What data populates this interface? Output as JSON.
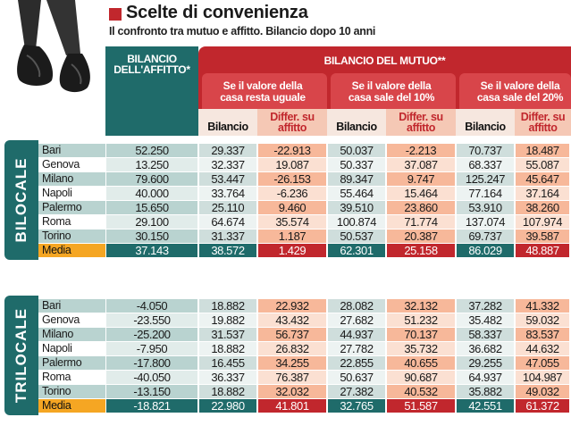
{
  "title": "Scelte di convenienza",
  "subtitle": "Il confronto tra mutuo e affitto. Bilancio dopo 10 anni",
  "header": {
    "affitto": [
      "BILANCIO",
      "DELL'AFFITTO*"
    ],
    "mutuo": "BILANCIO DEL MUTUO**",
    "scenarios": [
      [
        "Se il valore della",
        "casa resta uguale"
      ],
      [
        "Se il valore della",
        "casa sale del 10%"
      ],
      [
        "Se il valore della",
        "casa sale del 20%"
      ]
    ],
    "bilancio": "Bilancio",
    "differ": [
      "Differ. su",
      "affitto"
    ]
  },
  "colors": {
    "teal": "#1f6b6a",
    "red": "#c1272d",
    "peach": "#f5c8b5",
    "lightTeal": "#cfe0df",
    "orange": "#f5a623"
  },
  "sections": [
    {
      "label": "BILOCALE",
      "rows": [
        {
          "city": "Bari",
          "values": [
            "52.250",
            "29.337",
            "-22.913",
            "50.037",
            "-2.213",
            "70.737",
            "18.487"
          ]
        },
        {
          "city": "Genova",
          "values": [
            "13.250",
            "32.337",
            "19.087",
            "50.337",
            "37.087",
            "68.337",
            "55.087"
          ]
        },
        {
          "city": "Milano",
          "values": [
            "79.600",
            "53.447",
            "-26.153",
            "89.347",
            "9.747",
            "125.247",
            "45.647"
          ]
        },
        {
          "city": "Napoli",
          "values": [
            "40.000",
            "33.764",
            "-6.236",
            "55.464",
            "15.464",
            "77.164",
            "37.164"
          ]
        },
        {
          "city": "Palermo",
          "values": [
            "15.650",
            "25.110",
            "9.460",
            "39.510",
            "23.860",
            "53.910",
            "38.260"
          ]
        },
        {
          "city": "Roma",
          "values": [
            "29.100",
            "64.674",
            "35.574",
            "100.874",
            "71.774",
            "137.074",
            "107.974"
          ]
        },
        {
          "city": "Torino",
          "values": [
            "30.150",
            "31.337",
            "1.187",
            "50.537",
            "20.387",
            "69.737",
            "39.587"
          ]
        },
        {
          "city": "Media",
          "values": [
            "37.143",
            "38.572",
            "1.429",
            "62.301",
            "25.158",
            "86.029",
            "48.887"
          ]
        }
      ]
    },
    {
      "label": "TRILOCALE",
      "rows": [
        {
          "city": "Bari",
          "values": [
            "-4.050",
            "18.882",
            "22.932",
            "28.082",
            "32.132",
            "37.282",
            "41.332"
          ]
        },
        {
          "city": "Genova",
          "values": [
            "-23.550",
            "19.882",
            "43.432",
            "27.682",
            "51.232",
            "35.482",
            "59.032"
          ]
        },
        {
          "city": "Milano",
          "values": [
            "-25.200",
            "31.537",
            "56.737",
            "44.937",
            "70.137",
            "58.337",
            "83.537"
          ]
        },
        {
          "city": "Napoli",
          "values": [
            "-7.950",
            "18.882",
            "26.832",
            "27.782",
            "35.732",
            "36.682",
            "44.632"
          ]
        },
        {
          "city": "Palermo",
          "values": [
            "-17.800",
            "16.455",
            "34.255",
            "22.855",
            "40.655",
            "29.255",
            "47.055"
          ]
        },
        {
          "city": "Roma",
          "values": [
            "-40.050",
            "36.337",
            "76.387",
            "50.637",
            "90.687",
            "64.937",
            "104.987"
          ]
        },
        {
          "city": "Torino",
          "values": [
            "-13.150",
            "18.882",
            "32.032",
            "27.382",
            "40.532",
            "35.882",
            "49.032"
          ]
        },
        {
          "city": "Media",
          "values": [
            "-18.821",
            "22.980",
            "41.801",
            "32.765",
            "51.587",
            "42.551",
            "61.372"
          ]
        }
      ]
    }
  ]
}
